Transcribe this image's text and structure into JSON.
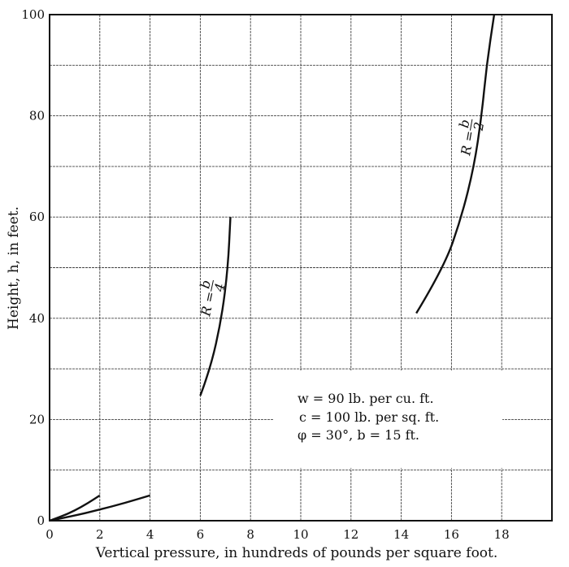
{
  "chart_data": {
    "type": "line",
    "xlabel": "Vertical pressure, in hundreds of pounds per square foot.",
    "ylabel": "Height, h, in feet.",
    "xlim": [
      0,
      20
    ],
    "ylim": [
      0,
      100
    ],
    "xticks": [
      0,
      2,
      4,
      6,
      8,
      10,
      12,
      14,
      16,
      18
    ],
    "yticks": [
      0,
      20,
      40,
      60,
      80,
      100
    ],
    "grid": true,
    "grid_x_step": 2,
    "grid_y_step": 10,
    "series": [
      {
        "points": [
          [
            0,
            0
          ],
          [
            0.5,
            0.9
          ],
          [
            1,
            2.0
          ],
          [
            1.5,
            3.4
          ],
          [
            2,
            5
          ]
        ]
      },
      {
        "points": [
          [
            0,
            0
          ],
          [
            1,
            1.0
          ],
          [
            2,
            2.2
          ],
          [
            3,
            3.5
          ],
          [
            4,
            5
          ]
        ]
      },
      {
        "name": "R = b/4",
        "label_num": "b",
        "label_den": "4",
        "points": [
          [
            6.0,
            24.7
          ],
          [
            6.4,
            30
          ],
          [
            6.85,
            40
          ],
          [
            7.1,
            50
          ],
          [
            7.2,
            60
          ]
        ]
      },
      {
        "name": "R = b/2",
        "label_num": "b",
        "label_den": "2",
        "points": [
          [
            14.6,
            41
          ],
          [
            15.7,
            50
          ],
          [
            16.4,
            60
          ],
          [
            16.9,
            70
          ],
          [
            17.2,
            80
          ],
          [
            17.4,
            90
          ],
          [
            17.7,
            100
          ]
        ]
      }
    ],
    "annotations": [
      "w = 90 lb. per cu. ft.",
      "c = 100 lb. per sq. ft.",
      "φ = 30°, b = 15 ft."
    ],
    "colors": {
      "ink": "#111111",
      "background": "#ffffff"
    }
  }
}
